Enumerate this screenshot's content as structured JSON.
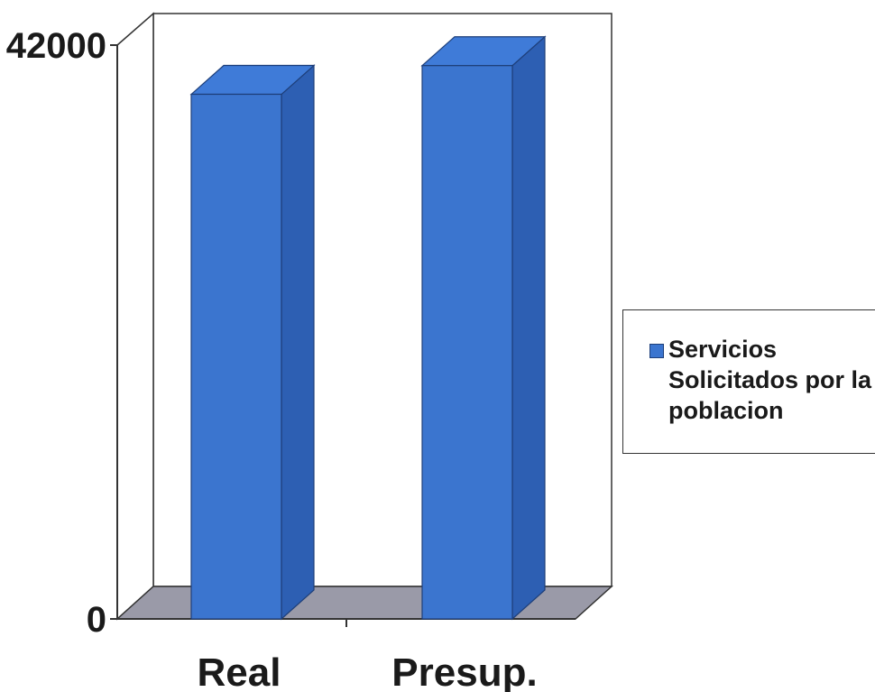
{
  "chart_data": {
    "type": "bar",
    "categories": [
      "Real",
      "Presup."
    ],
    "series": [
      {
        "name": "Servicios Solicitados por la poblacion",
        "values": [
          38400,
          40500
        ]
      }
    ],
    "ylim": [
      0,
      42000
    ],
    "yticks": [
      "0",
      "42000"
    ],
    "legend": "right",
    "grid": false,
    "style": "3d",
    "colors": {
      "bar_front": "#3b75cf",
      "bar_top": "#3f7bd8",
      "bar_side": "#2d5fb3",
      "floor": "#9a9aa8"
    }
  }
}
